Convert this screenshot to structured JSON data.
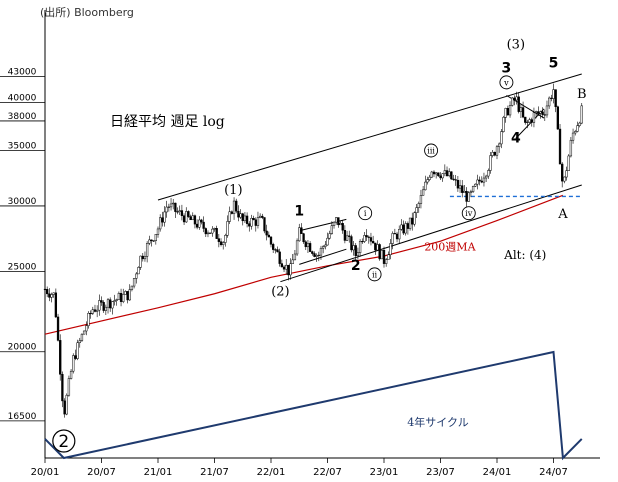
{
  "chart_data": {
    "type": "candlestick",
    "source": "(出所) Bloomberg",
    "title": "日経平均 週足 log",
    "y_scale": "log",
    "ylim": [
      14800,
      47000
    ],
    "y_ticks": [
      16500,
      20000,
      25000,
      30000,
      35000,
      38000,
      40000,
      43000
    ],
    "x_range": [
      "2020-01",
      "2024-10"
    ],
    "x_ticks": [
      "20/01",
      "20/07",
      "21/01",
      "21/07",
      "22/01",
      "22/07",
      "23/01",
      "23/07",
      "24/01",
      "24/07"
    ],
    "grid": false,
    "price_anchors": [
      {
        "t": "2020-01",
        "v": 23800
      },
      {
        "t": "2020-02",
        "v": 23400
      },
      {
        "t": "2020-03",
        "v": 16800
      },
      {
        "t": "2020-04",
        "v": 19600
      },
      {
        "t": "2020-06",
        "v": 22500
      },
      {
        "t": "2020-08",
        "v": 23000
      },
      {
        "t": "2020-10",
        "v": 23500
      },
      {
        "t": "2020-11",
        "v": 25800
      },
      {
        "t": "2020-12",
        "v": 27000
      },
      {
        "t": "2021-01",
        "v": 28200
      },
      {
        "t": "2021-02",
        "v": 30100
      },
      {
        "t": "2021-03",
        "v": 29500
      },
      {
        "t": "2021-05",
        "v": 28600
      },
      {
        "t": "2021-07",
        "v": 27800
      },
      {
        "t": "2021-08",
        "v": 27200
      },
      {
        "t": "2021-09",
        "v": 30300
      },
      {
        "t": "2021-10",
        "v": 28700
      },
      {
        "t": "2021-12",
        "v": 28800
      },
      {
        "t": "2022-01",
        "v": 27000
      },
      {
        "t": "2022-03",
        "v": 24900
      },
      {
        "t": "2022-04",
        "v": 27800
      },
      {
        "t": "2022-06",
        "v": 26100
      },
      {
        "t": "2022-08",
        "v": 28900
      },
      {
        "t": "2022-10",
        "v": 26200
      },
      {
        "t": "2022-11",
        "v": 28200
      },
      {
        "t": "2023-01",
        "v": 25800
      },
      {
        "t": "2023-02",
        "v": 27500
      },
      {
        "t": "2023-04",
        "v": 28700
      },
      {
        "t": "2023-05",
        "v": 30800
      },
      {
        "t": "2023-06",
        "v": 33300
      },
      {
        "t": "2023-08",
        "v": 32500
      },
      {
        "t": "2023-10",
        "v": 30600
      },
      {
        "t": "2023-12",
        "v": 33400
      },
      {
        "t": "2024-01",
        "v": 35500
      },
      {
        "t": "2024-02",
        "v": 39000
      },
      {
        "t": "2024-03",
        "v": 40500
      },
      {
        "t": "2024-04",
        "v": 37500
      },
      {
        "t": "2024-05",
        "v": 38700
      },
      {
        "t": "2024-06",
        "v": 39000
      },
      {
        "t": "2024-07",
        "v": 41500
      },
      {
        "t": "2024-08",
        "v": 31500
      },
      {
        "t": "2024-09",
        "v": 36500
      },
      {
        "t": "2024-10",
        "v": 39000
      }
    ],
    "moving_average": {
      "name": "200週MA",
      "color": "#c00000",
      "points": [
        {
          "t": "2020-01",
          "v": 21000
        },
        {
          "t": "2021-01",
          "v": 22600
        },
        {
          "t": "2021-07",
          "v": 23500
        },
        {
          "t": "2022-01",
          "v": 24600
        },
        {
          "t": "2022-07",
          "v": 25400
        },
        {
          "t": "2023-01",
          "v": 26100
        },
        {
          "t": "2023-07",
          "v": 27200
        },
        {
          "t": "2024-01",
          "v": 28800
        },
        {
          "t": "2024-08",
          "v": 30900
        }
      ]
    },
    "reference_line": {
      "value": 30800,
      "from": "2023-08",
      "to": "2024-10",
      "style": "dashed",
      "color": "#1f6fd6"
    },
    "channel_lines": [
      {
        "from": {
          "t": "2021-01",
          "v": 30500
        },
        "to": {
          "t": "2024-10",
          "v": 43300
        }
      },
      {
        "from": {
          "t": "2022-02",
          "v": 24300
        },
        "to": {
          "t": "2024-10",
          "v": 31800
        }
      }
    ],
    "trend_lines": [
      {
        "from": {
          "t": "2022-04",
          "v": 28000
        },
        "to": {
          "t": "2022-09",
          "v": 28900
        }
      },
      {
        "from": {
          "t": "2022-04",
          "v": 25500
        },
        "to": {
          "t": "2022-09",
          "v": 26600
        }
      },
      {
        "from": {
          "t": "2024-02",
          "v": 40800
        },
        "to": {
          "t": "2024-06",
          "v": 38300
        }
      },
      {
        "from": {
          "t": "2024-03",
          "v": 36200
        },
        "to": {
          "t": "2024-06",
          "v": 39300
        }
      }
    ],
    "annotations": [
      {
        "text": "(1)",
        "t": "2021-09",
        "v": 31000,
        "style": "wave"
      },
      {
        "text": "(2)",
        "t": "2022-02",
        "v": 23400,
        "style": "wave"
      },
      {
        "text": "(3)",
        "t": "2024-03",
        "v": 46500,
        "style": "wave"
      },
      {
        "text": "1",
        "t": "2022-04",
        "v": 29200,
        "style": "bold"
      },
      {
        "text": "2",
        "t": "2022-10",
        "v": 25100,
        "style": "bold"
      },
      {
        "text": "3",
        "t": "2024-02",
        "v": 43500,
        "style": "bold"
      },
      {
        "text": "4",
        "t": "2024-03",
        "v": 35800,
        "style": "bold"
      },
      {
        "text": "5",
        "t": "2024-07",
        "v": 44100,
        "style": "bold"
      },
      {
        "text": "A",
        "t": "2024-08",
        "v": 29000,
        "style": "wave"
      },
      {
        "text": "B",
        "t": "2024-10",
        "v": 40500,
        "style": "wave"
      },
      {
        "text": "ⅰ",
        "t": "2022-11",
        "v": 29400,
        "style": "circled"
      },
      {
        "text": "ⅱ",
        "t": "2022-12",
        "v": 24800,
        "style": "circled"
      },
      {
        "text": "ⅲ",
        "t": "2023-06",
        "v": 35000,
        "style": "circled"
      },
      {
        "text": "ⅳ",
        "t": "2023-10",
        "v": 29400,
        "style": "circled"
      },
      {
        "text": "ⅴ",
        "t": "2024-02",
        "v": 42300,
        "style": "circled"
      },
      {
        "text": "Alt: (4)",
        "t": "2024-04",
        "v": 25900,
        "style": "alt"
      },
      {
        "text": "200週MA",
        "t": "2023-08",
        "v": 26500,
        "style": "ma"
      }
    ],
    "four_year_cycle": {
      "label": "4年サイクル",
      "marker": "2",
      "points": [
        {
          "t": "2020-01",
          "level": 0.18
        },
        {
          "t": "2020-03",
          "level": 0.0
        },
        {
          "t": "2024-07",
          "level": 1.0
        },
        {
          "t": "2024-08",
          "level": 0.0
        },
        {
          "t": "2024-10",
          "level": 0.18
        }
      ],
      "color": "#1f3a6e"
    }
  }
}
